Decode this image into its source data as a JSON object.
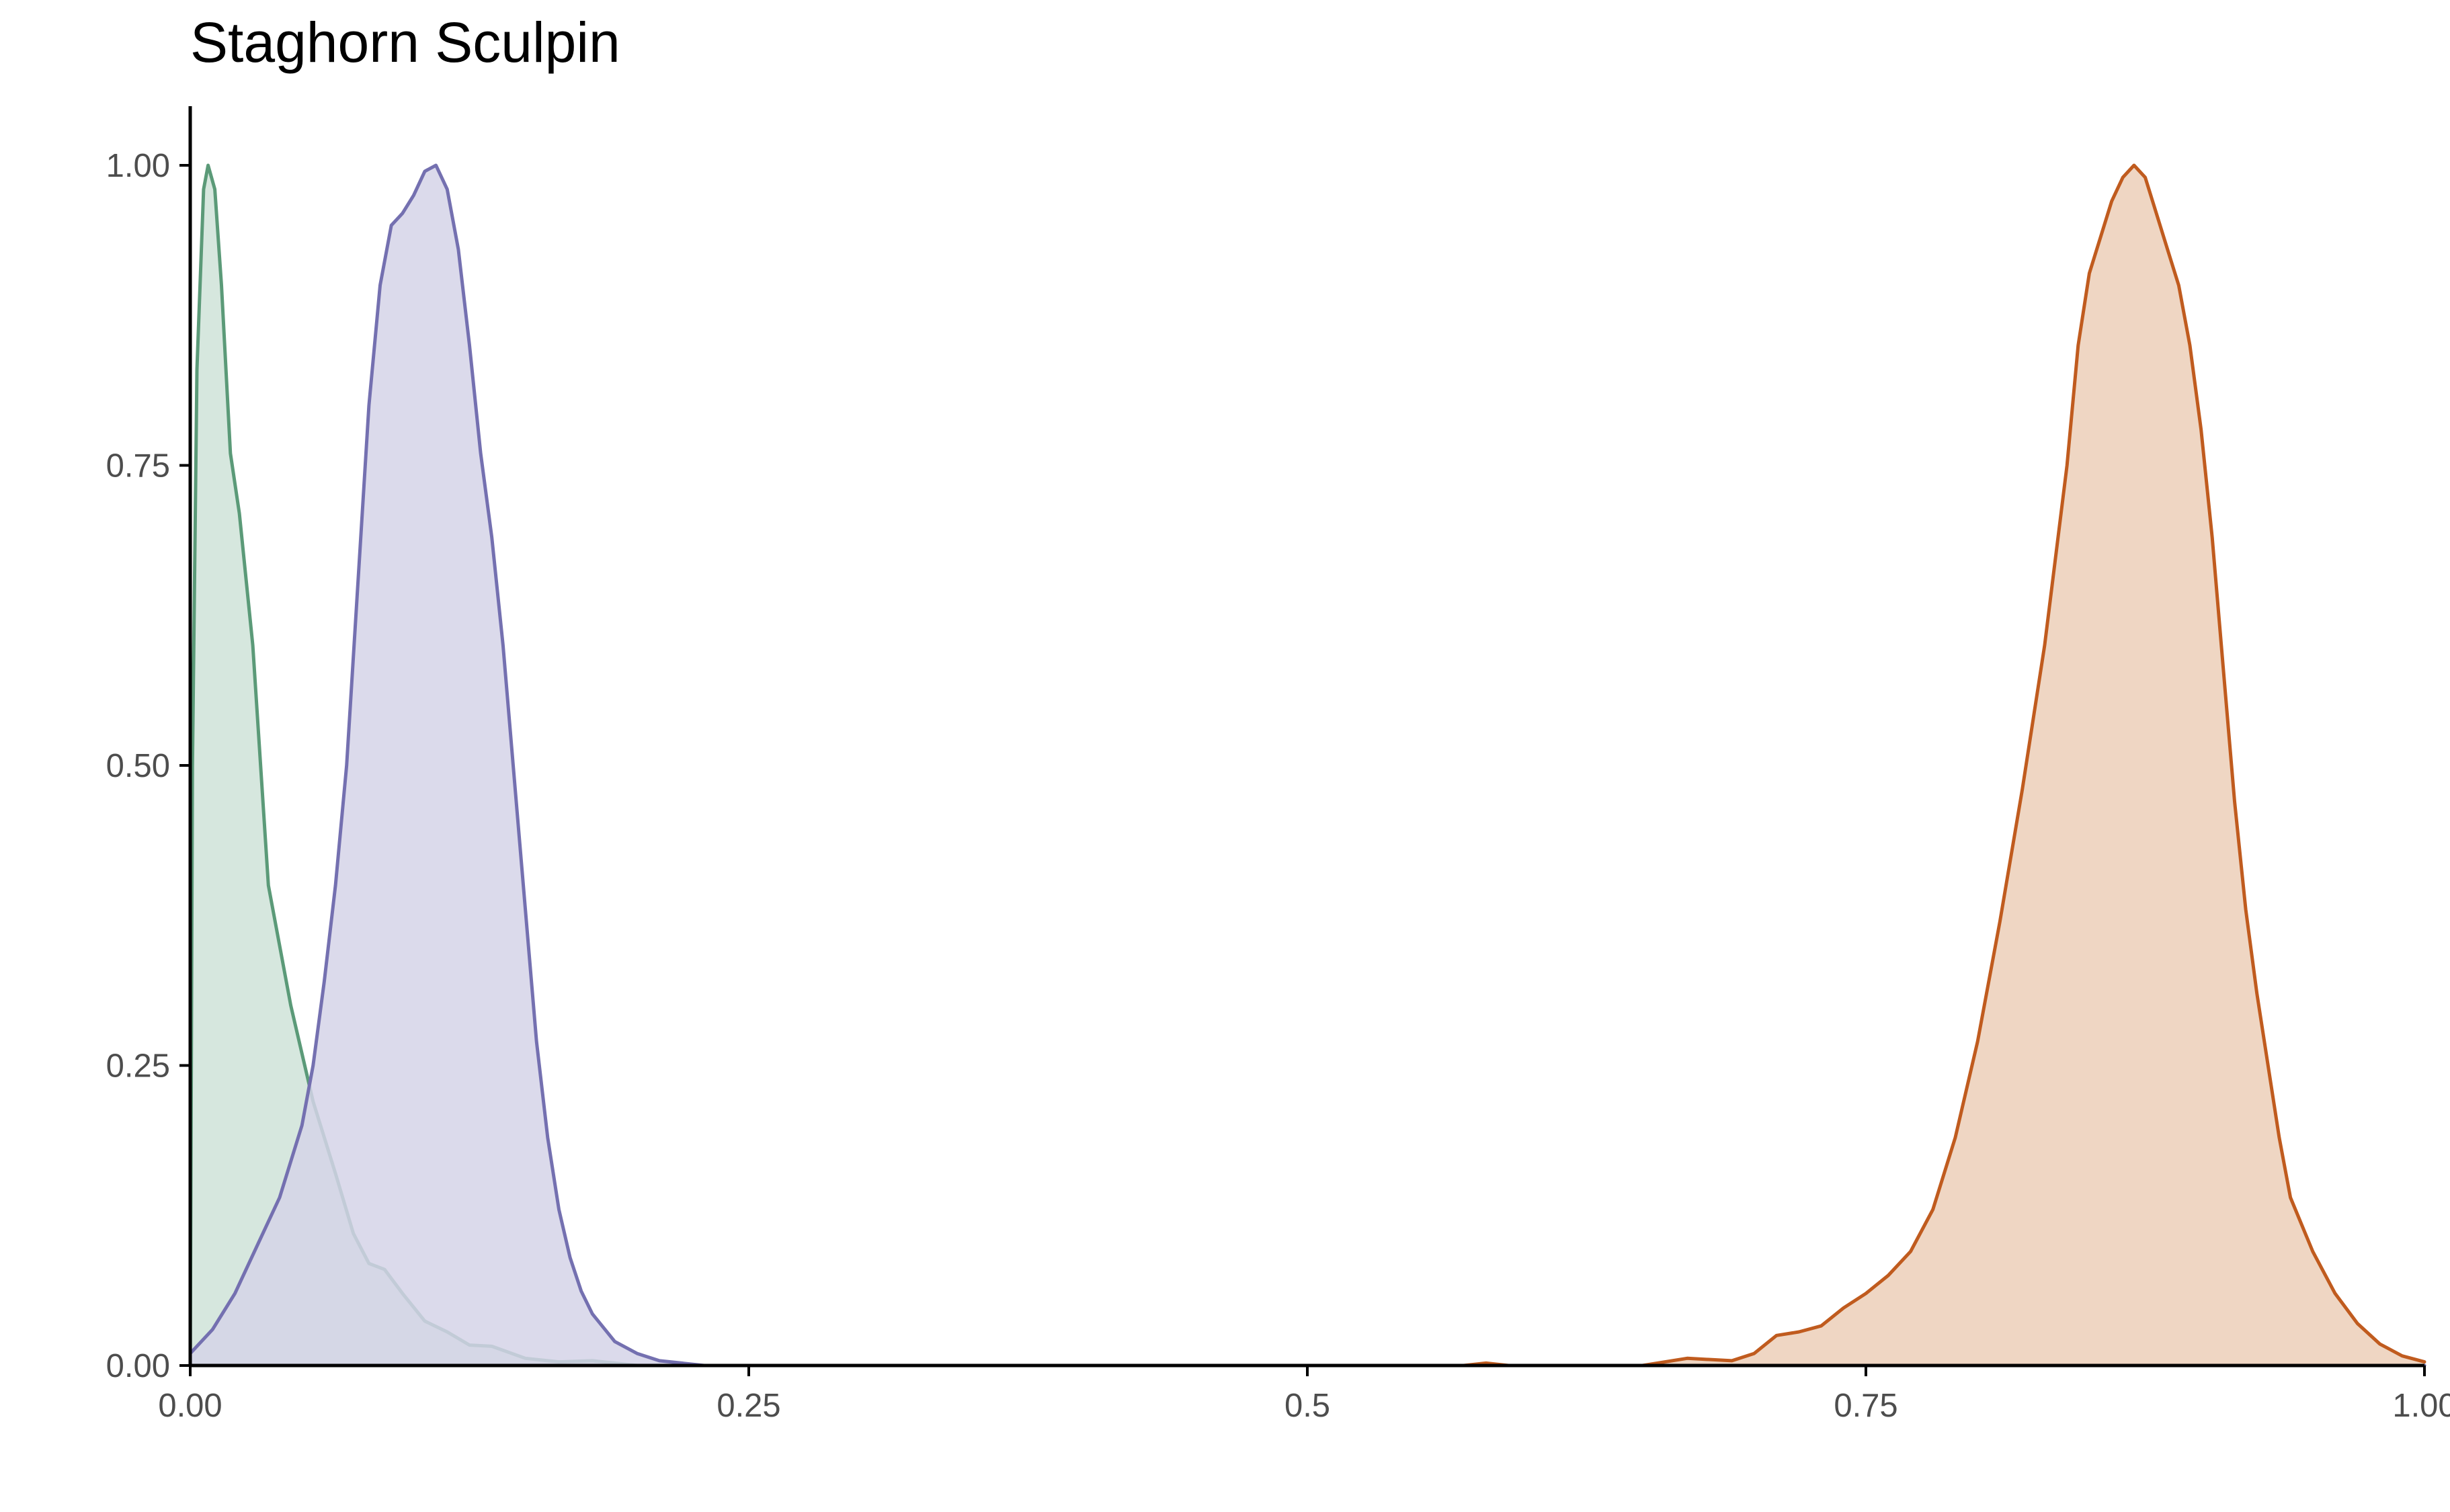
{
  "chart_data": {
    "type": "area",
    "title": "Staghorn Sculpin",
    "xlabel": "",
    "ylabel": "",
    "xlim": [
      0,
      1
    ],
    "ylim": [
      0,
      1.05
    ],
    "x_ticks": [
      {
        "value": 0,
        "label": "0.00"
      },
      {
        "value": 0.25,
        "label": "0.25"
      },
      {
        "value": 0.5,
        "label": "0.5"
      },
      {
        "value": 0.75,
        "label": "0.75"
      },
      {
        "value": 1,
        "label": "1.00"
      }
    ],
    "y_ticks": [
      {
        "value": 0,
        "label": "0.00"
      },
      {
        "value": 0.25,
        "label": "0.25"
      },
      {
        "value": 0.5,
        "label": "0.50"
      },
      {
        "value": 0.75,
        "label": "0.75"
      },
      {
        "value": 1,
        "label": "1.00"
      }
    ],
    "grid": false,
    "legend": "none",
    "series": [
      {
        "color": "#5b9a78",
        "fill": "#cfe3d8",
        "points": [
          [
            0.0,
            0.0
          ],
          [
            0.001,
            0.5
          ],
          [
            0.003,
            0.83
          ],
          [
            0.006,
            0.98
          ],
          [
            0.008,
            1.0
          ],
          [
            0.011,
            0.98
          ],
          [
            0.014,
            0.9
          ],
          [
            0.018,
            0.76
          ],
          [
            0.022,
            0.71
          ],
          [
            0.028,
            0.6
          ],
          [
            0.035,
            0.4
          ],
          [
            0.045,
            0.3
          ],
          [
            0.055,
            0.22
          ],
          [
            0.065,
            0.16
          ],
          [
            0.073,
            0.11
          ],
          [
            0.08,
            0.085
          ],
          [
            0.087,
            0.08
          ],
          [
            0.095,
            0.06
          ],
          [
            0.105,
            0.037
          ],
          [
            0.115,
            0.028
          ],
          [
            0.125,
            0.017
          ],
          [
            0.135,
            0.016
          ],
          [
            0.15,
            0.006
          ],
          [
            0.165,
            0.003
          ],
          [
            0.18,
            0.004
          ],
          [
            0.19,
            0.002
          ],
          [
            0.2,
            0.0
          ],
          [
            1.0,
            0.0
          ]
        ]
      },
      {
        "color": "#7470b0",
        "fill": "#d5d3e8",
        "points": [
          [
            0.0,
            0.01
          ],
          [
            0.01,
            0.03
          ],
          [
            0.02,
            0.06
          ],
          [
            0.03,
            0.1
          ],
          [
            0.04,
            0.14
          ],
          [
            0.05,
            0.2
          ],
          [
            0.055,
            0.25
          ],
          [
            0.06,
            0.32
          ],
          [
            0.065,
            0.4
          ],
          [
            0.07,
            0.5
          ],
          [
            0.075,
            0.65
          ],
          [
            0.08,
            0.8
          ],
          [
            0.085,
            0.9
          ],
          [
            0.09,
            0.95
          ],
          [
            0.095,
            0.96
          ],
          [
            0.1,
            0.975
          ],
          [
            0.105,
            0.995
          ],
          [
            0.11,
            1.0
          ],
          [
            0.115,
            0.98
          ],
          [
            0.12,
            0.93
          ],
          [
            0.125,
            0.85
          ],
          [
            0.13,
            0.76
          ],
          [
            0.135,
            0.69
          ],
          [
            0.14,
            0.6
          ],
          [
            0.145,
            0.49
          ],
          [
            0.15,
            0.38
          ],
          [
            0.155,
            0.27
          ],
          [
            0.16,
            0.19
          ],
          [
            0.165,
            0.13
          ],
          [
            0.17,
            0.09
          ],
          [
            0.175,
            0.062
          ],
          [
            0.18,
            0.043
          ],
          [
            0.19,
            0.02
          ],
          [
            0.2,
            0.01
          ],
          [
            0.21,
            0.004
          ],
          [
            0.22,
            0.002
          ],
          [
            0.23,
            0.0
          ],
          [
            1.0,
            0.0
          ]
        ]
      },
      {
        "color": "#c05b1e",
        "fill": "#eccfb8",
        "points": [
          [
            0.0,
            0.0
          ],
          [
            0.57,
            0.0
          ],
          [
            0.58,
            0.002
          ],
          [
            0.59,
            0.0
          ],
          [
            0.65,
            0.0
          ],
          [
            0.67,
            0.006
          ],
          [
            0.69,
            0.004
          ],
          [
            0.7,
            0.01
          ],
          [
            0.71,
            0.025
          ],
          [
            0.72,
            0.028
          ],
          [
            0.73,
            0.033
          ],
          [
            0.74,
            0.048
          ],
          [
            0.75,
            0.06
          ],
          [
            0.76,
            0.075
          ],
          [
            0.77,
            0.095
          ],
          [
            0.78,
            0.13
          ],
          [
            0.79,
            0.19
          ],
          [
            0.8,
            0.27
          ],
          [
            0.81,
            0.37
          ],
          [
            0.82,
            0.48
          ],
          [
            0.83,
            0.6
          ],
          [
            0.84,
            0.75
          ],
          [
            0.845,
            0.85
          ],
          [
            0.85,
            0.91
          ],
          [
            0.855,
            0.94
          ],
          [
            0.86,
            0.97
          ],
          [
            0.865,
            0.99
          ],
          [
            0.87,
            1.0
          ],
          [
            0.875,
            0.99
          ],
          [
            0.88,
            0.96
          ],
          [
            0.885,
            0.93
          ],
          [
            0.89,
            0.9
          ],
          [
            0.895,
            0.85
          ],
          [
            0.9,
            0.78
          ],
          [
            0.905,
            0.69
          ],
          [
            0.91,
            0.58
          ],
          [
            0.915,
            0.47
          ],
          [
            0.92,
            0.38
          ],
          [
            0.925,
            0.31
          ],
          [
            0.93,
            0.25
          ],
          [
            0.935,
            0.19
          ],
          [
            0.94,
            0.14
          ],
          [
            0.95,
            0.095
          ],
          [
            0.96,
            0.06
          ],
          [
            0.97,
            0.035
          ],
          [
            0.98,
            0.018
          ],
          [
            0.99,
            0.008
          ],
          [
            1.0,
            0.003
          ]
        ]
      }
    ]
  }
}
